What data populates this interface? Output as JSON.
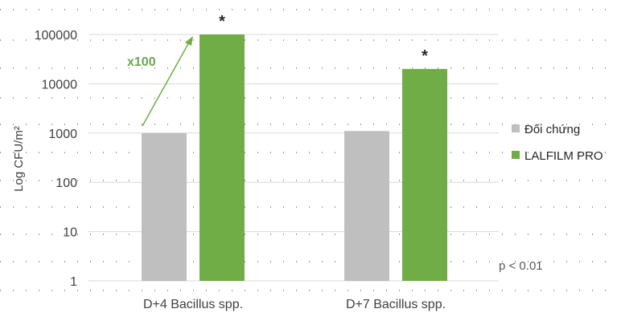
{
  "chart_data": {
    "type": "bar",
    "categories": [
      "D+4 Bacillus spp.",
      "D+7 Bacillus spp."
    ],
    "series": [
      {
        "name": "Đối chứng",
        "color": "#bfbfbf",
        "values": [
          1000,
          1100
        ]
      },
      {
        "name": "LALFILM PRO",
        "color": "#70ad47",
        "values": [
          100000,
          20000
        ]
      }
    ],
    "ylabel": "Log CFU/m²",
    "yscale": "log",
    "ylim": [
      1,
      100000
    ],
    "yticks": [
      "1",
      "10",
      "100",
      "1000",
      "10000",
      "100000"
    ],
    "significance_marks": [
      "*",
      "*"
    ],
    "annotation": "x100",
    "annotation_color": "#6aa84f",
    "note": "p < 0.01",
    "legend_position": "right",
    "grid": true
  }
}
